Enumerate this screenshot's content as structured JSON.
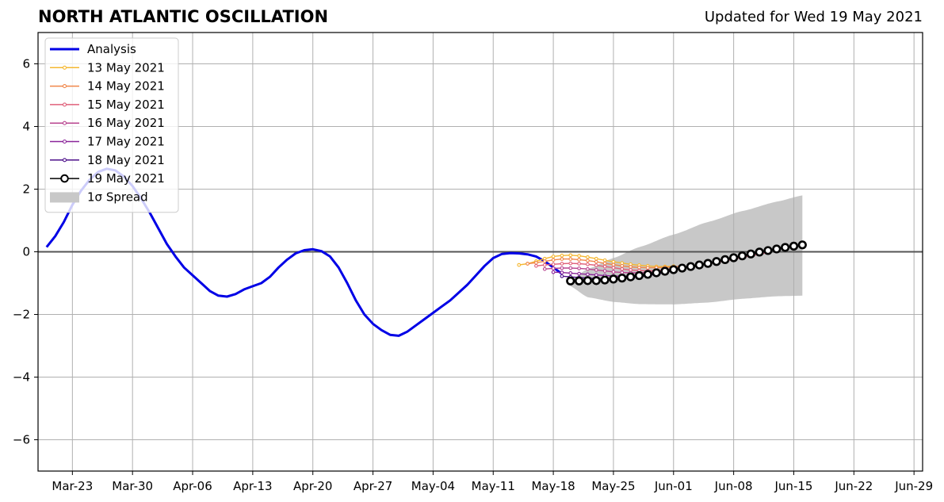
{
  "chart_data": {
    "type": "line",
    "title": "NORTH ATLANTIC OSCILLATION",
    "subtitle": "Updated for Wed 19 May 2021",
    "xlabel": "",
    "ylabel": "",
    "x_range": [
      "2021-03-19",
      "2021-06-30"
    ],
    "ylim": [
      -7,
      7
    ],
    "grid": true,
    "legend_position": "top-left",
    "x_ticks": [
      {
        "date": "2021-03-23",
        "label": "Mar-23"
      },
      {
        "date": "2021-03-30",
        "label": "Mar-30"
      },
      {
        "date": "2021-04-06",
        "label": "Apr-06"
      },
      {
        "date": "2021-04-13",
        "label": "Apr-13"
      },
      {
        "date": "2021-04-20",
        "label": "Apr-20"
      },
      {
        "date": "2021-04-27",
        "label": "Apr-27"
      },
      {
        "date": "2021-05-04",
        "label": "May-04"
      },
      {
        "date": "2021-05-11",
        "label": "May-11"
      },
      {
        "date": "2021-05-18",
        "label": "May-18"
      },
      {
        "date": "2021-05-25",
        "label": "May-25"
      },
      {
        "date": "2021-06-01",
        "label": "Jun-01"
      },
      {
        "date": "2021-06-08",
        "label": "Jun-08"
      },
      {
        "date": "2021-06-15",
        "label": "Jun-15"
      },
      {
        "date": "2021-06-22",
        "label": "Jun-22"
      },
      {
        "date": "2021-06-29",
        "label": "Jun-29"
      }
    ],
    "y_ticks": [
      {
        "value": -6,
        "label": "−6"
      },
      {
        "value": -4,
        "label": "−4"
      },
      {
        "value": -2,
        "label": "−2"
      },
      {
        "value": 0,
        "label": "0"
      },
      {
        "value": 2,
        "label": "2"
      },
      {
        "value": 4,
        "label": "4"
      },
      {
        "value": 6,
        "label": "6"
      }
    ],
    "series": [
      {
        "name": "Analysis",
        "color": "#0000e6",
        "marker": "none",
        "x": [
          "2021-03-20",
          "2021-03-21",
          "2021-03-22",
          "2021-03-23",
          "2021-03-24",
          "2021-03-25",
          "2021-03-26",
          "2021-03-27",
          "2021-03-28",
          "2021-03-29",
          "2021-03-30",
          "2021-03-31",
          "2021-04-01",
          "2021-04-02",
          "2021-04-03",
          "2021-04-04",
          "2021-04-05",
          "2021-04-06",
          "2021-04-07",
          "2021-04-08",
          "2021-04-09",
          "2021-04-10",
          "2021-04-11",
          "2021-04-12",
          "2021-04-13",
          "2021-04-14",
          "2021-04-15",
          "2021-04-16",
          "2021-04-17",
          "2021-04-18",
          "2021-04-19",
          "2021-04-20",
          "2021-04-21",
          "2021-04-22",
          "2021-04-23",
          "2021-04-24",
          "2021-04-25",
          "2021-04-26",
          "2021-04-27",
          "2021-04-28",
          "2021-04-29",
          "2021-04-30",
          "2021-05-01",
          "2021-05-02",
          "2021-05-03",
          "2021-05-04",
          "2021-05-05",
          "2021-05-06",
          "2021-05-07",
          "2021-05-08",
          "2021-05-09",
          "2021-05-10",
          "2021-05-11",
          "2021-05-12",
          "2021-05-13",
          "2021-05-14",
          "2021-05-15",
          "2021-05-16",
          "2021-05-17",
          "2021-05-18",
          "2021-05-19"
        ],
        "values": [
          0.15,
          0.5,
          0.95,
          1.5,
          1.95,
          2.3,
          2.55,
          2.65,
          2.6,
          2.4,
          2.1,
          1.7,
          1.25,
          0.75,
          0.25,
          -0.15,
          -0.5,
          -0.75,
          -1.0,
          -1.25,
          -1.4,
          -1.43,
          -1.35,
          -1.2,
          -1.1,
          -1.0,
          -0.8,
          -0.5,
          -0.25,
          -0.05,
          0.05,
          0.08,
          0.02,
          -0.15,
          -0.5,
          -1.0,
          -1.55,
          -2.0,
          -2.3,
          -2.5,
          -2.65,
          -2.68,
          -2.55,
          -2.35,
          -2.15,
          -1.95,
          -1.75,
          -1.55,
          -1.3,
          -1.05,
          -0.75,
          -0.45,
          -0.2,
          -0.07,
          -0.04,
          -0.05,
          -0.08,
          -0.15,
          -0.3,
          -0.5,
          -0.7
        ]
      },
      {
        "name": "13 May 2021",
        "color": "#f5b730",
        "marker": "dot",
        "x": [
          "2021-05-14",
          "2021-05-15",
          "2021-05-16",
          "2021-05-17",
          "2021-05-18",
          "2021-05-19",
          "2021-05-20",
          "2021-05-21",
          "2021-05-22",
          "2021-05-23",
          "2021-05-24",
          "2021-05-25",
          "2021-05-26",
          "2021-05-27",
          "2021-05-28",
          "2021-05-29",
          "2021-05-30",
          "2021-05-31",
          "2021-06-01"
        ],
        "values": [
          -0.42,
          -0.38,
          -0.3,
          -0.22,
          -0.15,
          -0.12,
          -0.11,
          -0.13,
          -0.17,
          -0.22,
          -0.27,
          -0.32,
          -0.36,
          -0.4,
          -0.43,
          -0.45,
          -0.47,
          -0.47,
          -0.46
        ]
      },
      {
        "name": "14 May 2021",
        "color": "#f0864a",
        "marker": "dot",
        "x": [
          "2021-05-15",
          "2021-05-16",
          "2021-05-17",
          "2021-05-18",
          "2021-05-19",
          "2021-05-20",
          "2021-05-21",
          "2021-05-22",
          "2021-05-23",
          "2021-05-24",
          "2021-05-25",
          "2021-05-26",
          "2021-05-27",
          "2021-05-28",
          "2021-05-29",
          "2021-05-30",
          "2021-05-31",
          "2021-06-01",
          "2021-06-02"
        ],
        "values": [
          -0.38,
          -0.35,
          -0.3,
          -0.26,
          -0.23,
          -0.23,
          -0.25,
          -0.28,
          -0.32,
          -0.37,
          -0.41,
          -0.45,
          -0.48,
          -0.5,
          -0.51,
          -0.51,
          -0.5,
          -0.48,
          -0.45
        ]
      },
      {
        "name": "15 May 2021",
        "color": "#e0607a",
        "marker": "dot",
        "x": [
          "2021-05-16",
          "2021-05-17",
          "2021-05-18",
          "2021-05-19",
          "2021-05-20",
          "2021-05-21",
          "2021-05-22",
          "2021-05-23",
          "2021-05-24",
          "2021-05-25",
          "2021-05-26",
          "2021-05-27",
          "2021-05-28",
          "2021-05-29",
          "2021-05-30",
          "2021-05-31",
          "2021-06-01",
          "2021-06-02",
          "2021-06-03",
          "2021-06-04",
          "2021-06-05",
          "2021-06-06",
          "2021-06-07",
          "2021-06-08",
          "2021-06-09",
          "2021-06-10",
          "2021-06-11",
          "2021-06-12"
        ],
        "values": [
          -0.45,
          -0.42,
          -0.4,
          -0.38,
          -0.37,
          -0.38,
          -0.4,
          -0.43,
          -0.47,
          -0.51,
          -0.55,
          -0.58,
          -0.6,
          -0.61,
          -0.6,
          -0.58,
          -0.55,
          -0.51,
          -0.47,
          -0.43,
          -0.38,
          -0.34,
          -0.29,
          -0.24,
          -0.18,
          -0.13,
          -0.08,
          -0.02
        ]
      },
      {
        "name": "16 May 2021",
        "color": "#b8448f",
        "marker": "dot",
        "x": [
          "2021-05-17",
          "2021-05-18",
          "2021-05-19",
          "2021-05-20",
          "2021-05-21",
          "2021-05-22",
          "2021-05-23",
          "2021-05-24",
          "2021-05-25",
          "2021-05-26",
          "2021-05-27",
          "2021-05-28",
          "2021-05-29",
          "2021-05-30",
          "2021-05-31",
          "2021-06-01"
        ],
        "values": [
          -0.55,
          -0.53,
          -0.52,
          -0.52,
          -0.53,
          -0.55,
          -0.58,
          -0.61,
          -0.64,
          -0.66,
          -0.67,
          -0.67,
          -0.66,
          -0.64,
          -0.61,
          -0.57
        ]
      },
      {
        "name": "17 May 2021",
        "color": "#8a2499",
        "marker": "dot",
        "x": [
          "2021-05-18",
          "2021-05-19",
          "2021-05-20",
          "2021-05-21",
          "2021-05-22",
          "2021-05-23",
          "2021-05-24",
          "2021-05-25",
          "2021-05-26",
          "2021-05-27",
          "2021-05-28",
          "2021-05-29",
          "2021-05-30",
          "2021-05-31",
          "2021-06-01"
        ],
        "values": [
          -0.65,
          -0.66,
          -0.68,
          -0.7,
          -0.72,
          -0.74,
          -0.76,
          -0.77,
          -0.78,
          -0.77,
          -0.75,
          -0.72,
          -0.68,
          -0.64,
          -0.6
        ]
      },
      {
        "name": "18 May 2021",
        "color": "#4d0f8a",
        "marker": "dot",
        "x": [
          "2021-05-19",
          "2021-05-20",
          "2021-05-21",
          "2021-05-22",
          "2021-05-23",
          "2021-05-24",
          "2021-05-25",
          "2021-05-26",
          "2021-05-27",
          "2021-05-28",
          "2021-05-29",
          "2021-05-30",
          "2021-05-31",
          "2021-06-01"
        ],
        "values": [
          -0.78,
          -0.8,
          -0.82,
          -0.84,
          -0.85,
          -0.86,
          -0.86,
          -0.85,
          -0.83,
          -0.8,
          -0.76,
          -0.71,
          -0.66,
          -0.6
        ]
      },
      {
        "name": "19 May 2021",
        "color": "#000000",
        "marker": "circle",
        "x": [
          "2021-05-20",
          "2021-05-21",
          "2021-05-22",
          "2021-05-23",
          "2021-05-24",
          "2021-05-25",
          "2021-05-26",
          "2021-05-27",
          "2021-05-28",
          "2021-05-29",
          "2021-05-30",
          "2021-05-31",
          "2021-06-01",
          "2021-06-02",
          "2021-06-03",
          "2021-06-04",
          "2021-06-05",
          "2021-06-06",
          "2021-06-07",
          "2021-06-08",
          "2021-06-09",
          "2021-06-10",
          "2021-06-11",
          "2021-06-12",
          "2021-06-13",
          "2021-06-14",
          "2021-06-15",
          "2021-06-16"
        ],
        "values": [
          -0.93,
          -0.93,
          -0.92,
          -0.92,
          -0.9,
          -0.87,
          -0.84,
          -0.8,
          -0.76,
          -0.72,
          -0.67,
          -0.62,
          -0.57,
          -0.52,
          -0.47,
          -0.42,
          -0.37,
          -0.31,
          -0.25,
          -0.19,
          -0.13,
          -0.07,
          -0.01,
          0.04,
          0.09,
          0.14,
          0.18,
          0.22
        ]
      }
    ],
    "spread": {
      "name": "1σ Spread",
      "color": "#c8c8c8",
      "x": [
        "2021-05-20",
        "2021-05-22",
        "2021-05-25",
        "2021-05-28",
        "2021-06-01",
        "2021-06-05",
        "2021-06-09",
        "2021-06-13",
        "2021-06-16"
      ],
      "upper": [
        -0.9,
        -0.55,
        -0.2,
        0.15,
        0.55,
        0.95,
        1.3,
        1.6,
        1.8
      ],
      "lower": [
        -1.1,
        -1.45,
        -1.6,
        -1.67,
        -1.68,
        -1.62,
        -1.5,
        -1.42,
        -1.4
      ]
    }
  }
}
